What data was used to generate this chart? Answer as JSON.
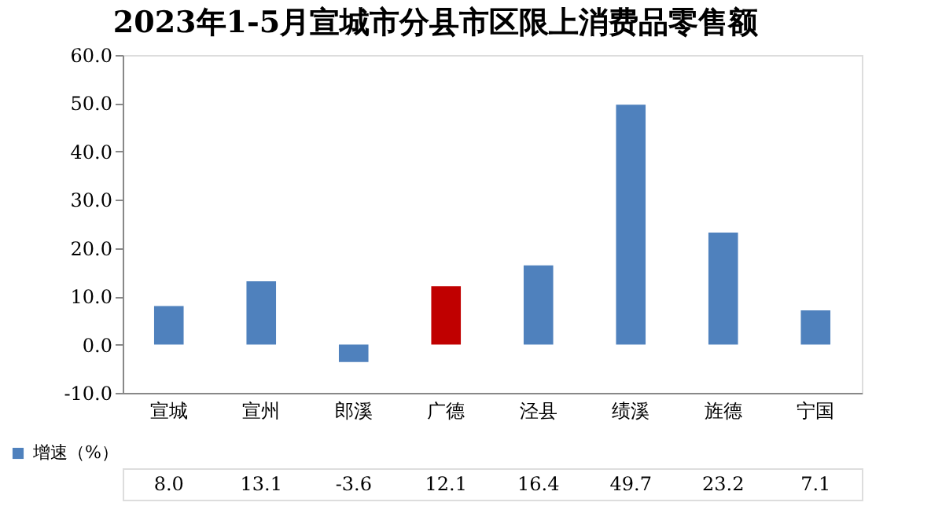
{
  "chart_data": {
    "type": "bar",
    "title": "2023年1-5月宣城市分县市区限上消费品零售额",
    "categories": [
      "宣城",
      "宣州",
      "郎溪",
      "广德",
      "泾县",
      "绩溪",
      "旌德",
      "宁国"
    ],
    "series": [
      {
        "name": "增速（%）",
        "color": "#4f81bd",
        "colors": [
          "#4f81bd",
          "#4f81bd",
          "#4f81bd",
          "#c00000",
          "#4f81bd",
          "#4f81bd",
          "#4f81bd",
          "#4f81bd"
        ],
        "values": [
          8.0,
          13.1,
          -3.6,
          12.1,
          16.4,
          49.7,
          23.2,
          7.1
        ],
        "value_labels": [
          "8.0",
          "13.1",
          "-3.6",
          "12.1",
          "16.4",
          "49.7",
          "23.2",
          "7.1"
        ]
      }
    ],
    "ylim": [
      -10,
      60
    ],
    "yticks": [
      {
        "value": -10,
        "label": "-10.0"
      },
      {
        "value": 0,
        "label": "0.0"
      },
      {
        "value": 10,
        "label": "10.0"
      },
      {
        "value": 20,
        "label": "20.0"
      },
      {
        "value": 30,
        "label": "30.0"
      },
      {
        "value": 40,
        "label": "40.0"
      },
      {
        "value": 50,
        "label": "50.0"
      },
      {
        "value": 60,
        "label": "60.0"
      }
    ],
    "grid": false,
    "legend": "bottom"
  }
}
